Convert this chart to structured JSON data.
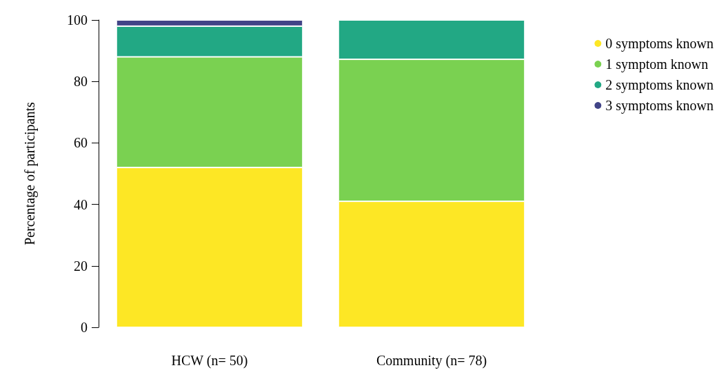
{
  "chart_data": {
    "type": "bar",
    "stacked": true,
    "ylabel": "Percentage of participants",
    "categories": [
      "HCW (n= 50)",
      "Community (n= 78)"
    ],
    "series": [
      {
        "name": "0 symptoms known",
        "color": "#fde725",
        "values": [
          52,
          41.0
        ]
      },
      {
        "name": "1 symptom known",
        "color": "#7ad151",
        "values": [
          36,
          46.2
        ]
      },
      {
        "name": "2 symptoms known",
        "color": "#22a884",
        "values": [
          10,
          12.8
        ]
      },
      {
        "name": "3 symptoms known",
        "color": "#414487",
        "values": [
          2,
          0
        ]
      }
    ],
    "ylim": [
      0,
      100
    ],
    "yticks": [
      0,
      20,
      40,
      60,
      80,
      100
    ],
    "grid": false,
    "legend": "top right",
    "marker": "circle"
  }
}
